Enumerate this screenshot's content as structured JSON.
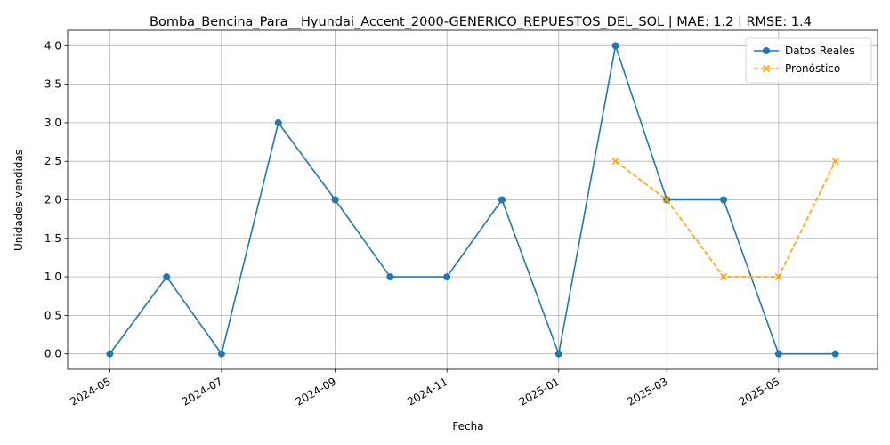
{
  "chart_data": {
    "type": "line",
    "title": "Bomba_Bencina_Para__Hyundai_Accent_2000-GENERICO_REPUESTOS_DEL_SOL | MAE: 1.2 | RMSE: 1.4",
    "xlabel": "Fecha",
    "ylabel": "Unidades vendidas",
    "xlim": [
      "2024-04-08",
      "2025-06-24"
    ],
    "ylim": [
      -0.2,
      4.2
    ],
    "x_ticks": [
      "2024-05",
      "2024-07",
      "2024-09",
      "2024-11",
      "2025-01",
      "2025-03",
      "2025-05"
    ],
    "y_ticks": [
      "0.0",
      "0.5",
      "1.0",
      "1.5",
      "2.0",
      "2.5",
      "3.0",
      "3.5",
      "4.0"
    ],
    "grid": true,
    "legend_position": "top-right",
    "series": [
      {
        "name": "Datos Reales",
        "color": "#1f77b4",
        "marker": "circle",
        "line_style": "solid",
        "x": [
          "2024-05-01",
          "2024-06-01",
          "2024-07-01",
          "2024-08-01",
          "2024-09-01",
          "2024-10-01",
          "2024-11-01",
          "2024-12-01",
          "2025-01-01",
          "2025-02-01",
          "2025-03-01",
          "2025-04-01",
          "2025-05-01",
          "2025-06-01"
        ],
        "values": [
          0,
          1,
          0,
          3,
          2,
          1,
          1,
          2,
          0,
          4,
          2,
          2,
          0,
          0
        ]
      },
      {
        "name": "Pronóstico",
        "color": "#ffa500",
        "marker": "x",
        "line_style": "dashed",
        "x": [
          "2025-02-01",
          "2025-03-01",
          "2025-04-01",
          "2025-05-01",
          "2025-06-01"
        ],
        "values": [
          2.5,
          2.0,
          1.0,
          1.0,
          2.5
        ]
      }
    ]
  }
}
